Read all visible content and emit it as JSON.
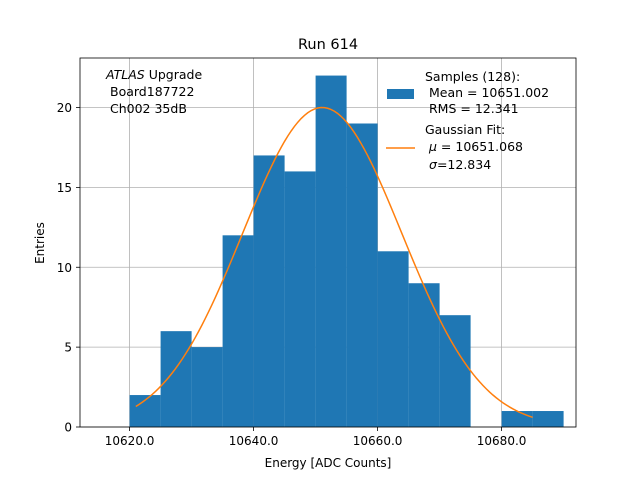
{
  "chart_data": {
    "type": "bar",
    "title": "Run 614",
    "xlabel": "Energy [ADC Counts]",
    "ylabel": "Entries",
    "xlim": [
      10612,
      10692
    ],
    "ylim": [
      0,
      23.1
    ],
    "grid": true,
    "xticks": [
      10620,
      10640,
      10660,
      10680
    ],
    "xtick_labels": [
      "10620.0",
      "10640.0",
      "10660.0",
      "10680.0"
    ],
    "yticks": [
      0,
      5,
      10,
      15,
      20
    ],
    "ytick_labels": [
      "0",
      "5",
      "10",
      "15",
      "20"
    ],
    "bin_width": 5,
    "bins": [
      {
        "x0": 10620,
        "x1": 10625,
        "count": 2
      },
      {
        "x0": 10625,
        "x1": 10630,
        "count": 6
      },
      {
        "x0": 10630,
        "x1": 10635,
        "count": 5
      },
      {
        "x0": 10635,
        "x1": 10640,
        "count": 12
      },
      {
        "x0": 10640,
        "x1": 10645,
        "count": 17
      },
      {
        "x0": 10645,
        "x1": 10650,
        "count": 16
      },
      {
        "x0": 10650,
        "x1": 10655,
        "count": 22
      },
      {
        "x0": 10655,
        "x1": 10660,
        "count": 19
      },
      {
        "x0": 10660,
        "x1": 10665,
        "count": 11
      },
      {
        "x0": 10665,
        "x1": 10670,
        "count": 9
      },
      {
        "x0": 10670,
        "x1": 10675,
        "count": 7
      },
      {
        "x0": 10675,
        "x1": 10680,
        "count": 0
      },
      {
        "x0": 10680,
        "x1": 10685,
        "count": 1
      },
      {
        "x0": 10685,
        "x1": 10690,
        "count": 1
      }
    ],
    "fit": {
      "type": "gaussian",
      "mu": 10651.068,
      "sigma": 12.834,
      "peak": 20.0,
      "x_range": [
        10621.0,
        10685.0
      ]
    },
    "colors": {
      "bars": "#1f77b4",
      "fit": "#ff7f0e",
      "grid": "#b0b0b0"
    },
    "annotation": {
      "line1_italic": "ATLAS",
      "line1_rest": " Upgrade",
      "line2": "Board187722",
      "line3": "Ch002 35dB"
    },
    "legend": {
      "placement": "top-right",
      "samples_line1": "Samples (128):",
      "samples_line2": "Mean = 10651.002",
      "samples_line3": "RMS = 12.341",
      "fit_line1": "Gaussian Fit:",
      "fit_line2_symbol": "μ",
      "fit_line2_rest": " = 10651.068",
      "fit_line3_symbol": "σ",
      "fit_line3_rest": "=12.834"
    }
  }
}
